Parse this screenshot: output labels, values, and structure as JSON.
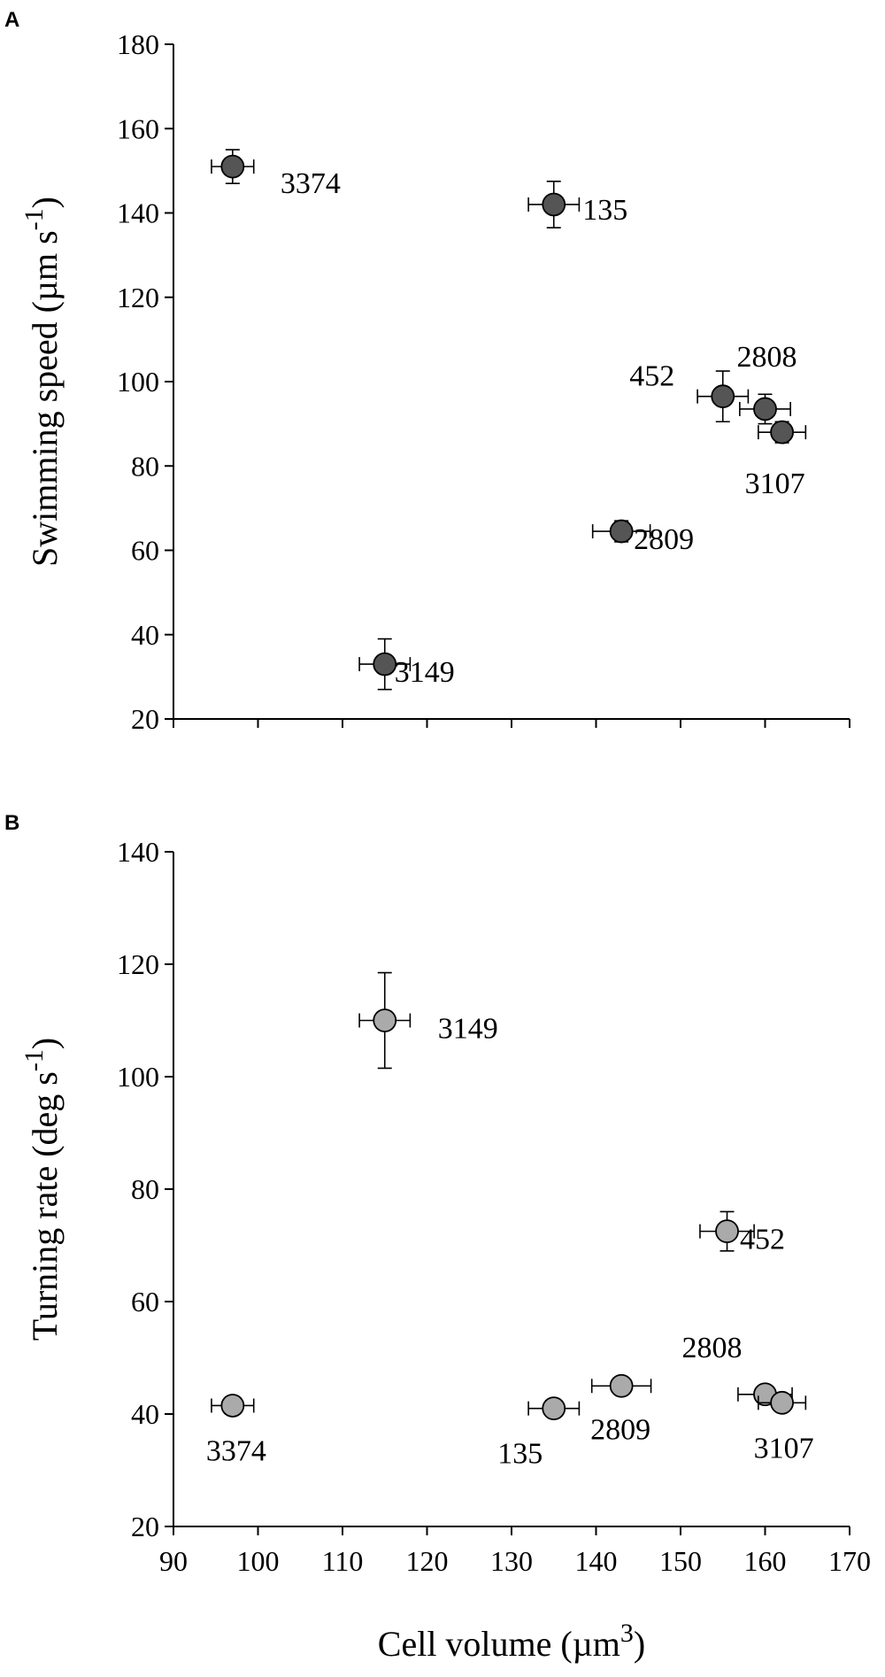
{
  "chart_data": [
    {
      "type": "scatter",
      "panel": "A",
      "title": "",
      "xlabel": "",
      "ylabel": "Swimming speed (µm s-1)",
      "ylabel_parts": {
        "main": "Swimming speed (µm s",
        "sup": "-1",
        "tail": ")"
      },
      "xlim": [
        90,
        170
      ],
      "ylim": [
        20,
        180
      ],
      "xticks": [
        90,
        100,
        110,
        120,
        130,
        140,
        150,
        160,
        170
      ],
      "yticks": [
        20,
        40,
        60,
        80,
        100,
        120,
        140,
        160,
        180
      ],
      "show_x_tick_labels": false,
      "grid": false,
      "marker_color": "#555555",
      "points": [
        {
          "label": "3374",
          "x": 97,
          "y": 151,
          "xerr": 2.5,
          "yerr": 4
        },
        {
          "label": "135",
          "x": 135,
          "y": 142,
          "xerr": 3,
          "yerr": 5.5
        },
        {
          "label": "452",
          "x": 155,
          "y": 96.5,
          "xerr": 3,
          "yerr": 6
        },
        {
          "label": "2808",
          "x": 160,
          "y": 93.5,
          "xerr": 3,
          "yerr": 3.5
        },
        {
          "label": "3107",
          "x": 162,
          "y": 88,
          "xerr": 2.8,
          "yerr": 2.5
        },
        {
          "label": "2809",
          "x": 143,
          "y": 64.5,
          "xerr": 3.4,
          "yerr": 2.5
        },
        {
          "label": "3149",
          "x": 115,
          "y": 33,
          "xerr": 3,
          "yerr": 6
        }
      ]
    },
    {
      "type": "scatter",
      "panel": "B",
      "title": "",
      "xlabel": "Cell volume (µm3)",
      "xlabel_parts": {
        "main": "Cell volume (µm",
        "sup": "3",
        "tail": ")"
      },
      "ylabel": "Turning rate (deg s-1)",
      "ylabel_parts": {
        "main": "Turning rate (deg s",
        "sup": "-1",
        "tail": ")"
      },
      "xlim": [
        90,
        170
      ],
      "ylim": [
        20,
        140
      ],
      "xticks": [
        90,
        100,
        110,
        120,
        130,
        140,
        150,
        160,
        170
      ],
      "yticks": [
        20,
        40,
        60,
        80,
        100,
        120,
        140
      ],
      "show_x_tick_labels": true,
      "grid": false,
      "marker_color": "#aaaaaa",
      "points": [
        {
          "label": "3149",
          "x": 115,
          "y": 110,
          "xerr": 3,
          "yerr": 8.5
        },
        {
          "label": "452",
          "x": 155.5,
          "y": 72.5,
          "xerr": 3.2,
          "yerr": 3.5
        },
        {
          "label": "3374",
          "x": 97,
          "y": 41.5,
          "xerr": 2.5,
          "yerr": 0
        },
        {
          "label": "135",
          "x": 135,
          "y": 41,
          "xerr": 3,
          "yerr": 0
        },
        {
          "label": "2809",
          "x": 143,
          "y": 45,
          "xerr": 3.5,
          "yerr": 0
        },
        {
          "label": "2808",
          "x": 160,
          "y": 43.5,
          "xerr": 3.2,
          "yerr": 0
        },
        {
          "label": "3107",
          "x": 162,
          "y": 42,
          "xerr": 2.8,
          "yerr": 0
        }
      ]
    }
  ]
}
